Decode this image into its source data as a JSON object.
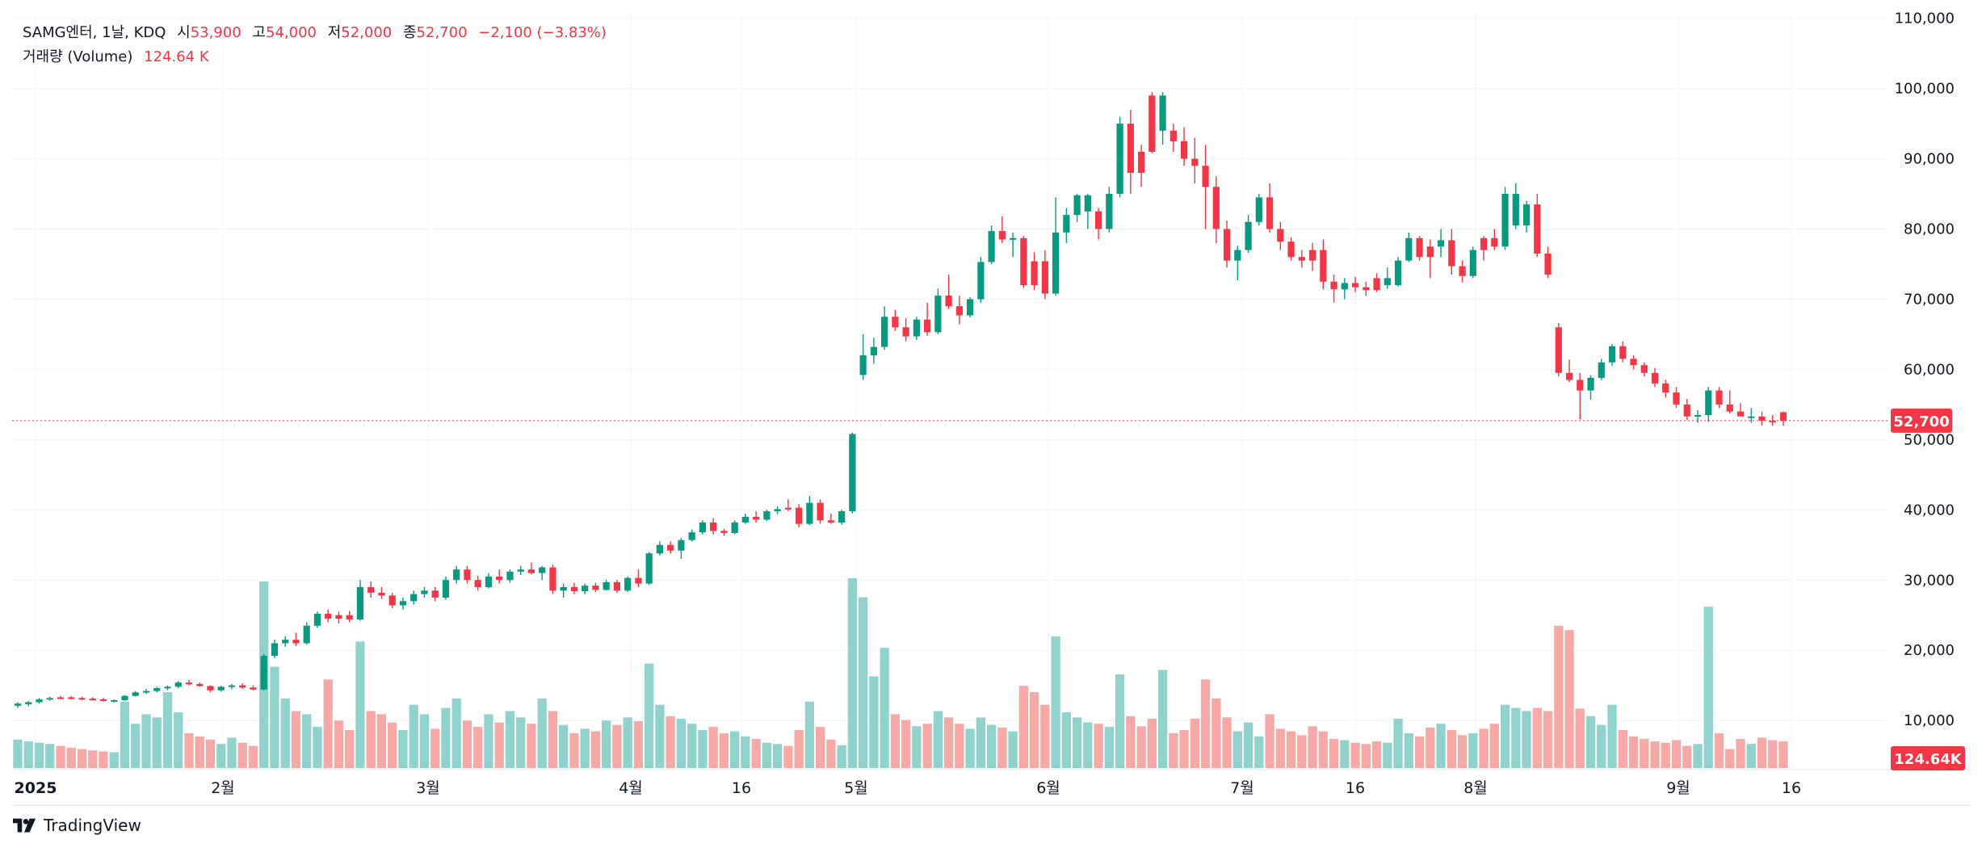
{
  "header": {
    "symbol": "SAMG엔터, 1날, KDQ",
    "open_label": "시",
    "open": "53,900",
    "high_label": "고",
    "high": "54,000",
    "low_label": "저",
    "low": "52,000",
    "close_label": "종",
    "close": "52,700",
    "change": "−2,100 (−3.83%)",
    "volume_label": "거래량 (Volume)",
    "volume": "124.64 K"
  },
  "price_badge": "52,700",
  "volume_badge": "124.64K",
  "brand": "TradingView",
  "colors": {
    "up": "#089981",
    "down": "#f23645",
    "up_vol": "#92d2cc",
    "down_vol": "#f7a9a7",
    "grid": "#f0f3fa",
    "text": "#131722"
  },
  "chart_data": {
    "type": "candlestick",
    "y_ticks": [
      "110,000",
      "100,000",
      "90,000",
      "80,000",
      "70,000",
      "60,000",
      "50,000",
      "40,000",
      "30,000",
      "20,000",
      "10,000"
    ],
    "x_ticks": [
      "2025",
      "2월",
      "3월",
      "4월",
      "16",
      "5월",
      "6월",
      "7월",
      "16",
      "8월",
      "9월",
      "16"
    ],
    "ylim": [
      3000,
      111000
    ],
    "volume_scale_max": 300,
    "last_close": 52700,
    "last_volume": "124.64K",
    "candles": [
      [
        12100,
        12600,
        11800,
        12400,
        45,
        "up"
      ],
      [
        12300,
        12800,
        12000,
        12600,
        42,
        "up"
      ],
      [
        12600,
        13200,
        12400,
        13000,
        40,
        "up"
      ],
      [
        13000,
        13400,
        12800,
        13200,
        38,
        "up"
      ],
      [
        13200,
        13500,
        13000,
        13300,
        35,
        "down"
      ],
      [
        13300,
        13500,
        13000,
        13200,
        32,
        "down"
      ],
      [
        13200,
        13400,
        12900,
        13100,
        30,
        "down"
      ],
      [
        13100,
        13300,
        12900,
        13000,
        28,
        "down"
      ],
      [
        13000,
        13200,
        12700,
        12800,
        26,
        "down"
      ],
      [
        12800,
        13000,
        12600,
        12900,
        25,
        "up"
      ],
      [
        12900,
        13600,
        12800,
        13500,
        105,
        "up"
      ],
      [
        13500,
        14200,
        13400,
        14000,
        70,
        "up"
      ],
      [
        14000,
        14500,
        13800,
        14200,
        85,
        "up"
      ],
      [
        14200,
        14800,
        14000,
        14600,
        80,
        "up"
      ],
      [
        14600,
        15000,
        14300,
        14800,
        120,
        "up"
      ],
      [
        14800,
        15600,
        14600,
        15400,
        88,
        "up"
      ],
      [
        15400,
        15800,
        15000,
        15200,
        55,
        "down"
      ],
      [
        15200,
        15400,
        14800,
        14900,
        50,
        "down"
      ],
      [
        14900,
        15000,
        14000,
        14300,
        45,
        "down"
      ],
      [
        14300,
        14900,
        14100,
        14800,
        38,
        "up"
      ],
      [
        14800,
        15200,
        14500,
        15000,
        48,
        "up"
      ],
      [
        15000,
        15300,
        14500,
        14700,
        40,
        "down"
      ],
      [
        14700,
        15000,
        14300,
        14400,
        35,
        "down"
      ],
      [
        14400,
        19500,
        14300,
        19200,
        295,
        "up"
      ],
      [
        19200,
        21500,
        18900,
        21000,
        160,
        "up"
      ],
      [
        21000,
        22000,
        20500,
        21500,
        110,
        "up"
      ],
      [
        21500,
        22500,
        20600,
        21000,
        90,
        "down"
      ],
      [
        21000,
        24000,
        20800,
        23500,
        85,
        "up"
      ],
      [
        23500,
        25500,
        23200,
        25200,
        65,
        "up"
      ],
      [
        25200,
        25800,
        24000,
        24500,
        140,
        "down"
      ],
      [
        24500,
        25500,
        23800,
        25000,
        75,
        "down"
      ],
      [
        25000,
        25600,
        24000,
        24400,
        60,
        "down"
      ],
      [
        24400,
        30000,
        24200,
        29000,
        200,
        "up"
      ],
      [
        29000,
        29800,
        27500,
        28200,
        90,
        "down"
      ],
      [
        28200,
        29000,
        27300,
        27800,
        85,
        "down"
      ],
      [
        27800,
        28200,
        26000,
        26400,
        72,
        "down"
      ],
      [
        26400,
        27500,
        25800,
        27000,
        60,
        "up"
      ],
      [
        27000,
        28500,
        26500,
        28000,
        100,
        "up"
      ],
      [
        28000,
        29000,
        27500,
        28500,
        85,
        "up"
      ],
      [
        28500,
        29000,
        27000,
        27500,
        62,
        "down"
      ],
      [
        27500,
        30500,
        27200,
        30000,
        95,
        "up"
      ],
      [
        30000,
        32000,
        29500,
        31500,
        110,
        "up"
      ],
      [
        31500,
        32000,
        29500,
        30000,
        75,
        "down"
      ],
      [
        30000,
        30600,
        28500,
        29000,
        65,
        "down"
      ],
      [
        29000,
        31000,
        28800,
        30500,
        85,
        "up"
      ],
      [
        30500,
        31500,
        29500,
        30000,
        72,
        "down"
      ],
      [
        30000,
        31500,
        29600,
        31200,
        90,
        "up"
      ],
      [
        31200,
        32000,
        30700,
        31500,
        80,
        "up"
      ],
      [
        31500,
        32500,
        30800,
        31000,
        70,
        "down"
      ],
      [
        31000,
        32000,
        30000,
        31800,
        110,
        "up"
      ],
      [
        31800,
        32200,
        28000,
        28500,
        90,
        "down"
      ],
      [
        28500,
        29500,
        27500,
        29000,
        68,
        "up"
      ],
      [
        29000,
        29600,
        28000,
        28400,
        55,
        "down"
      ],
      [
        28400,
        29500,
        28000,
        29200,
        62,
        "up"
      ],
      [
        29200,
        29600,
        28300,
        28600,
        58,
        "down"
      ],
      [
        28600,
        30000,
        28500,
        29700,
        75,
        "up"
      ],
      [
        29700,
        30000,
        28200,
        28500,
        68,
        "down"
      ],
      [
        28500,
        30500,
        28300,
        30300,
        80,
        "up"
      ],
      [
        30300,
        31500,
        29000,
        29500,
        74,
        "down"
      ],
      [
        29500,
        34000,
        29300,
        33800,
        165,
        "up"
      ],
      [
        33800,
        35500,
        33500,
        35000,
        100,
        "up"
      ],
      [
        35000,
        35500,
        33800,
        34200,
        82,
        "down"
      ],
      [
        34200,
        36000,
        33000,
        35700,
        78,
        "up"
      ],
      [
        35700,
        37200,
        35500,
        36800,
        70,
        "up"
      ],
      [
        36800,
        38500,
        36500,
        38200,
        60,
        "up"
      ],
      [
        38200,
        38800,
        36500,
        37000,
        65,
        "down"
      ],
      [
        37000,
        37300,
        36300,
        36700,
        55,
        "down"
      ],
      [
        36700,
        38500,
        36500,
        38200,
        58,
        "up"
      ],
      [
        38200,
        39500,
        38000,
        39000,
        50,
        "up"
      ],
      [
        39000,
        39800,
        38200,
        38600,
        46,
        "down"
      ],
      [
        38600,
        40000,
        38400,
        39800,
        40,
        "up"
      ],
      [
        39800,
        40500,
        39400,
        40100,
        38,
        "up"
      ],
      [
        40100,
        41500,
        39800,
        40300,
        35,
        "down"
      ],
      [
        40300,
        40800,
        37500,
        38000,
        60,
        "down"
      ],
      [
        38000,
        42000,
        37800,
        41000,
        105,
        "up"
      ],
      [
        41000,
        41500,
        38000,
        38500,
        65,
        "down"
      ],
      [
        38500,
        39500,
        38000,
        38200,
        45,
        "down"
      ],
      [
        38200,
        40000,
        37900,
        39800,
        36,
        "up"
      ],
      [
        39800,
        51000,
        39500,
        50800,
        300,
        "up"
      ],
      [
        59200,
        65000,
        58500,
        62000,
        270,
        "up"
      ],
      [
        62000,
        64500,
        60800,
        63200,
        145,
        "up"
      ],
      [
        63200,
        69000,
        62800,
        67500,
        190,
        "up"
      ],
      [
        67500,
        68500,
        65500,
        66000,
        85,
        "down"
      ],
      [
        66000,
        67300,
        64000,
        64700,
        76,
        "down"
      ],
      [
        64700,
        67500,
        64200,
        67100,
        66,
        "up"
      ],
      [
        67100,
        69500,
        64800,
        65300,
        70,
        "down"
      ],
      [
        65300,
        71500,
        65000,
        70500,
        90,
        "up"
      ],
      [
        70500,
        73500,
        68600,
        69000,
        80,
        "down"
      ],
      [
        69000,
        70500,
        66400,
        67700,
        70,
        "down"
      ],
      [
        67700,
        70300,
        67400,
        70000,
        62,
        "up"
      ],
      [
        70000,
        76000,
        69500,
        75300,
        80,
        "up"
      ],
      [
        75300,
        80500,
        75000,
        79700,
        68,
        "up"
      ],
      [
        79700,
        81800,
        78000,
        78500,
        64,
        "down"
      ],
      [
        78500,
        79500,
        76000,
        78700,
        58,
        "up"
      ],
      [
        78700,
        79000,
        71600,
        72000,
        130,
        "down"
      ],
      [
        72000,
        76700,
        71300,
        75400,
        120,
        "down"
      ],
      [
        75400,
        77000,
        70000,
        70800,
        100,
        "down"
      ],
      [
        70800,
        84500,
        70500,
        79500,
        208,
        "up"
      ],
      [
        79500,
        83000,
        78000,
        82000,
        88,
        "up"
      ],
      [
        82000,
        85000,
        81000,
        84800,
        80,
        "up"
      ],
      [
        84800,
        85000,
        80000,
        82500,
        72,
        "up"
      ],
      [
        82500,
        83000,
        78500,
        80000,
        70,
        "down"
      ],
      [
        80000,
        86000,
        79500,
        85000,
        65,
        "up"
      ],
      [
        85000,
        96000,
        84500,
        95000,
        148,
        "up"
      ],
      [
        95000,
        97000,
        85000,
        88000,
        82,
        "down"
      ],
      [
        88000,
        92000,
        86000,
        91000,
        66,
        "down"
      ],
      [
        91000,
        99500,
        90800,
        99000,
        78,
        "down"
      ],
      [
        99000,
        99500,
        92000,
        94000,
        155,
        "up"
      ],
      [
        94000,
        95000,
        91000,
        92500,
        55,
        "down"
      ],
      [
        92500,
        94500,
        89000,
        90000,
        60,
        "down"
      ],
      [
        90000,
        93000,
        86500,
        89000,
        78,
        "down"
      ],
      [
        89000,
        92000,
        80000,
        86000,
        140,
        "down"
      ],
      [
        86000,
        87500,
        78000,
        80000,
        110,
        "down"
      ],
      [
        80000,
        81200,
        74500,
        75500,
        80,
        "down"
      ],
      [
        75500,
        77600,
        72700,
        77000,
        58,
        "up"
      ],
      [
        77000,
        82000,
        76600,
        81000,
        72,
        "up"
      ],
      [
        81000,
        85000,
        80500,
        84500,
        50,
        "up"
      ],
      [
        84500,
        86500,
        79500,
        80000,
        85,
        "down"
      ],
      [
        80000,
        81000,
        77000,
        78200,
        62,
        "down"
      ],
      [
        78200,
        78800,
        75500,
        76000,
        58,
        "down"
      ],
      [
        76000,
        77000,
        74500,
        75500,
        52,
        "down"
      ],
      [
        75500,
        78000,
        74000,
        77000,
        66,
        "down"
      ],
      [
        77000,
        78500,
        71400,
        72500,
        58,
        "down"
      ],
      [
        72500,
        73500,
        69500,
        71400,
        46,
        "down"
      ],
      [
        71400,
        73000,
        70000,
        72300,
        44,
        "up"
      ],
      [
        72300,
        73200,
        71000,
        71700,
        40,
        "down"
      ],
      [
        71700,
        72500,
        70500,
        71300,
        38,
        "down"
      ],
      [
        71300,
        73700,
        71000,
        73000,
        42,
        "down"
      ],
      [
        73000,
        74500,
        71500,
        72000,
        40,
        "up"
      ],
      [
        72000,
        76000,
        71800,
        75500,
        78,
        "up"
      ],
      [
        75500,
        79500,
        75300,
        78700,
        55,
        "up"
      ],
      [
        78700,
        79000,
        75500,
        76000,
        50,
        "down"
      ],
      [
        76000,
        78500,
        73000,
        77500,
        64,
        "down"
      ],
      [
        77500,
        80000,
        76000,
        78400,
        70,
        "up"
      ],
      [
        78400,
        80000,
        73500,
        74700,
        60,
        "down"
      ],
      [
        74700,
        75500,
        72400,
        73300,
        52,
        "down"
      ],
      [
        73300,
        77500,
        73000,
        77000,
        55,
        "up"
      ],
      [
        77000,
        79000,
        75500,
        78700,
        62,
        "down"
      ],
      [
        78700,
        80000,
        77000,
        77500,
        70,
        "down"
      ],
      [
        77500,
        86000,
        77000,
        85000,
        100,
        "up"
      ],
      [
        85000,
        86500,
        80000,
        80500,
        95,
        "up"
      ],
      [
        80500,
        84000,
        79500,
        83500,
        90,
        "up"
      ],
      [
        83500,
        85000,
        76000,
        76500,
        95,
        "down"
      ],
      [
        76500,
        77500,
        73000,
        73500,
        90,
        "down"
      ],
      [
        66000,
        66600,
        59000,
        59500,
        225,
        "down"
      ],
      [
        59500,
        61400,
        58200,
        58500,
        218,
        "down"
      ],
      [
        58500,
        59500,
        52900,
        57000,
        94,
        "down"
      ],
      [
        57000,
        59200,
        55700,
        58800,
        82,
        "up"
      ],
      [
        58800,
        61500,
        58500,
        61000,
        68,
        "up"
      ],
      [
        61000,
        63600,
        60500,
        63300,
        100,
        "up"
      ],
      [
        63300,
        64000,
        61000,
        61500,
        60,
        "down"
      ],
      [
        61500,
        62000,
        60000,
        60600,
        50,
        "down"
      ],
      [
        60600,
        61000,
        59000,
        59500,
        46,
        "down"
      ],
      [
        59500,
        60200,
        57500,
        58000,
        42,
        "down"
      ],
      [
        58000,
        58500,
        56000,
        56700,
        40,
        "down"
      ],
      [
        56700,
        57500,
        54500,
        55000,
        44,
        "down"
      ],
      [
        55000,
        55800,
        52800,
        53300,
        35,
        "down"
      ],
      [
        53300,
        54200,
        52400,
        53500,
        38,
        "up"
      ],
      [
        53500,
        57500,
        52500,
        57000,
        255,
        "up"
      ],
      [
        57000,
        57500,
        54500,
        55000,
        55,
        "down"
      ],
      [
        55000,
        57000,
        53700,
        54000,
        30,
        "down"
      ],
      [
        54000,
        55200,
        53300,
        53300,
        46,
        "down"
      ],
      [
        53300,
        54500,
        52400,
        53300,
        38,
        "up"
      ],
      [
        53300,
        54000,
        52000,
        52700,
        48,
        "down"
      ],
      [
        52700,
        53500,
        52000,
        52700,
        44,
        "down"
      ],
      [
        53900,
        54000,
        52000,
        52700,
        42,
        "down"
      ]
    ]
  }
}
